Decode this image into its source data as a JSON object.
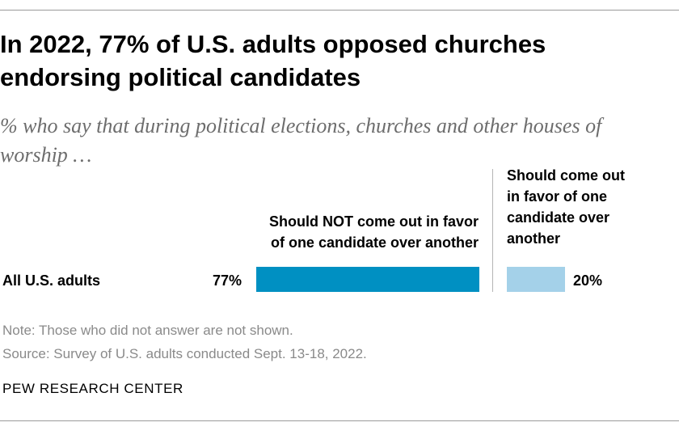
{
  "header": {
    "title": "In 2022, 77% of U.S. adults opposed churches endorsing political candidates",
    "subtitle": "% who say that during political elections, churches and other houses of worship …"
  },
  "footer": {
    "note": "Note: Those who did not answer are not shown.",
    "source": "Source: Survey of U.S. adults conducted Sept. 13-18, 2022.",
    "org": "PEW RESEARCH CENTER"
  },
  "colors": {
    "left_bar": "#0090c2",
    "right_bar": "#a4d1e9"
  },
  "chart_data": {
    "type": "bar",
    "orientation": "diverging-horizontal",
    "title": "In 2022, 77% of U.S. adults opposed churches endorsing political candidates",
    "subtitle": "% who say that during political elections, churches and other houses of worship …",
    "categories": [
      "All U.S. adults"
    ],
    "series": [
      {
        "name": "Should NOT come out in favor of one candidate over another",
        "name_lines": [
          "Should NOT come out in favor",
          "of one candidate over another"
        ],
        "values": [
          77
        ],
        "labels": [
          "77%"
        ],
        "side": "left"
      },
      {
        "name": "Should come out in favor of one candidate over another",
        "name_lines": [
          "Should come out",
          "in favor of one",
          "candidate over",
          "another"
        ],
        "values": [
          20
        ],
        "labels": [
          "20%"
        ],
        "side": "right"
      }
    ],
    "xlim": [
      0,
      100
    ],
    "grid": false,
    "xlabel": "",
    "ylabel": ""
  }
}
